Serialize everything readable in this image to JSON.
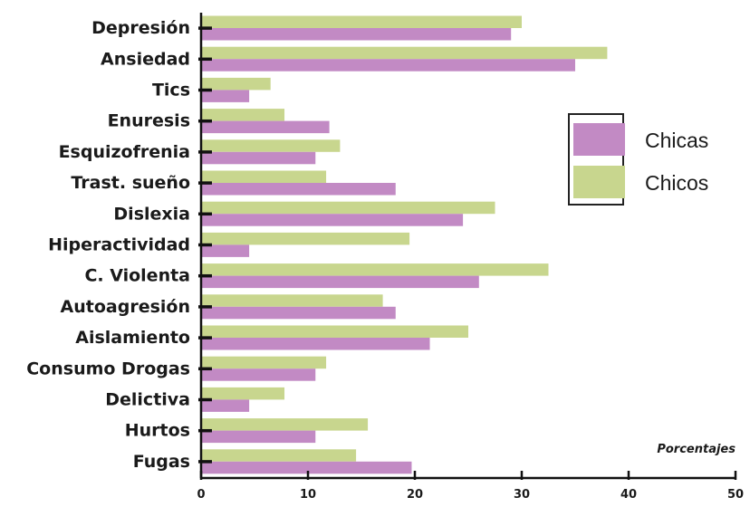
{
  "chart_data": {
    "type": "bar",
    "orientation": "horizontal",
    "categories": [
      "Depresión",
      "Ansiedad",
      "Tics",
      "Enuresis",
      "Esquizofrenia",
      "Trast. sueño",
      "Dislexia",
      "Hiperactividad",
      "C. Violenta",
      "Autoagresión",
      "Aislamiento",
      "Consumo Drogas",
      "Delictiva",
      "Hurtos",
      "Fugas"
    ],
    "series": [
      {
        "name": "Chicos",
        "color": "#c8d68e",
        "values": [
          30,
          38,
          6.5,
          7.8,
          13,
          11.7,
          27.5,
          19.5,
          32.5,
          17,
          25,
          11.7,
          7.8,
          15.6,
          14.5
        ]
      },
      {
        "name": "Chicas",
        "color": "#c28ac4",
        "values": [
          29,
          35,
          4.5,
          12,
          10.7,
          18.2,
          24.5,
          4.5,
          26,
          18.2,
          21.4,
          10.7,
          4.5,
          10.7,
          19.7
        ]
      }
    ],
    "xlabel": "Porcentajes",
    "xlim": [
      0,
      50
    ],
    "xticks": [
      0,
      10,
      20,
      30,
      40,
      50
    ],
    "legend": {
      "position": "right",
      "entries": [
        "Chicas",
        "Chicos"
      ]
    },
    "grid": false
  }
}
